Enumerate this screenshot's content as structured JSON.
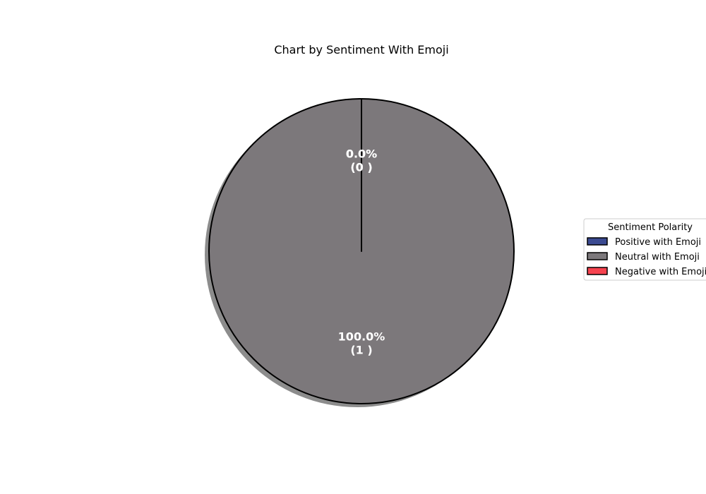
{
  "chart_data": {
    "type": "pie",
    "title": "Chart by Sentiment With Emoji",
    "start_angle_deg": 90,
    "direction": "counterclockwise",
    "shadow": true,
    "slices": [
      {
        "label": "Positive with Emoji",
        "value": 0,
        "percent_text": "0.0%",
        "count_text": "(0 )",
        "color": "#3b4a91"
      },
      {
        "label": "Neutral with Emoji",
        "value": 1,
        "percent_text": "100.0%",
        "count_text": "(1 )",
        "color": "#7c787b"
      },
      {
        "label": "Negative with Emoji",
        "value": 0,
        "percent_text": "0.0%",
        "count_text": "(0 )",
        "color": "#f6434f"
      }
    ],
    "legend": {
      "title": "Sentiment Polarity",
      "placement": "right",
      "entries": [
        "Positive with Emoji",
        "Neutral with Emoji",
        "Negative with Emoji"
      ]
    }
  }
}
